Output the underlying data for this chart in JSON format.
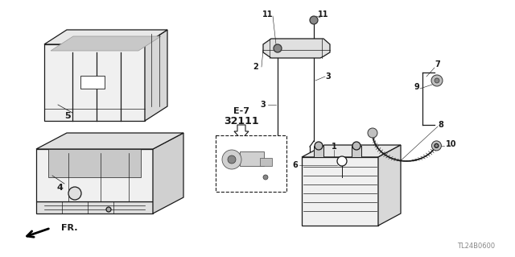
{
  "bg_color": "#ffffff",
  "line_color": "#1a1a1a",
  "watermark": "TL24B0600",
  "fig_w": 6.4,
  "fig_h": 3.19,
  "dpi": 100
}
